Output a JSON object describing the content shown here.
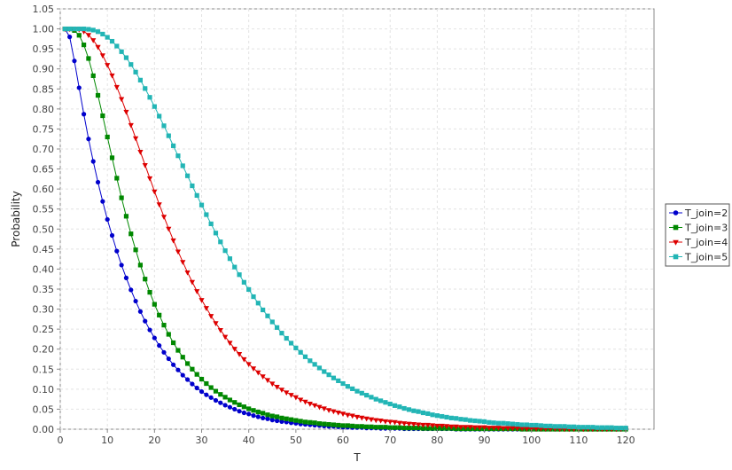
{
  "chart_data": {
    "type": "line",
    "xlabel": "T",
    "ylabel": "Probability",
    "xlim": [
      0,
      126
    ],
    "ylim": [
      0,
      1.05
    ],
    "x_ticks": [
      "0",
      "10",
      "20",
      "30",
      "40",
      "50",
      "60",
      "70",
      "80",
      "90",
      "100",
      "110",
      "120"
    ],
    "y_ticks": [
      "0.00",
      "0.05",
      "0.10",
      "0.15",
      "0.20",
      "0.25",
      "0.30",
      "0.35",
      "0.40",
      "0.45",
      "0.50",
      "0.55",
      "0.60",
      "0.65",
      "0.70",
      "0.75",
      "0.80",
      "0.85",
      "0.90",
      "0.95",
      "1.00",
      "1.05"
    ],
    "grid": true,
    "legend_position": "right",
    "x": [
      1,
      2,
      3,
      4,
      5,
      6,
      7,
      8,
      9,
      10,
      11,
      12,
      13,
      14,
      15,
      16,
      17,
      18,
      19,
      20,
      21,
      22,
      23,
      24,
      25,
      26,
      27,
      28,
      29,
      30,
      31,
      32,
      33,
      34,
      35,
      36,
      37,
      38,
      39,
      40,
      41,
      42,
      43,
      44,
      45,
      46,
      47,
      48,
      49,
      50,
      51,
      52,
      53,
      54,
      55,
      56,
      57,
      58,
      59,
      60,
      61,
      62,
      63,
      64,
      65,
      66,
      67,
      68,
      69,
      70,
      71,
      72,
      73,
      74,
      75,
      76,
      77,
      78,
      79,
      80,
      81,
      82,
      83,
      84,
      85,
      86,
      87,
      88,
      89,
      90,
      91,
      92,
      93,
      94,
      95,
      96,
      97,
      98,
      99,
      100,
      101,
      102,
      103,
      104,
      105,
      106,
      107,
      108,
      109,
      110,
      111,
      112,
      113,
      114,
      115,
      116,
      117,
      118,
      119,
      120
    ],
    "series": [
      {
        "name": "T_join=2",
        "color": "#0000cc",
        "marker": "circle",
        "values": [
          1.0,
          0.98,
          0.92,
          0.853,
          0.787,
          0.725,
          0.669,
          0.617,
          0.569,
          0.524,
          0.484,
          0.445,
          0.41,
          0.378,
          0.348,
          0.32,
          0.294,
          0.27,
          0.248,
          0.228,
          0.209,
          0.192,
          0.176,
          0.161,
          0.148,
          0.135,
          0.124,
          0.113,
          0.103,
          0.094,
          0.086,
          0.079,
          0.072,
          0.066,
          0.06,
          0.055,
          0.05,
          0.045,
          0.041,
          0.038,
          0.034,
          0.031,
          0.028,
          0.026,
          0.023,
          0.021,
          0.019,
          0.018,
          0.016,
          0.015,
          0.013,
          0.012,
          0.011,
          0.01,
          0.009,
          0.008,
          0.007,
          0.007,
          0.006,
          0.005,
          0.005,
          0.004,
          0.004,
          0.004,
          0.003,
          0.003,
          0.003,
          0.002,
          0.002,
          0.002,
          0.002,
          0.002,
          0.001,
          0.001,
          0.001,
          0.001,
          0.001,
          0.001,
          0.001,
          0.001,
          0.001,
          0.001,
          0.001,
          0.0,
          0.0,
          0.0,
          0.0,
          0.0,
          0.0,
          0.0,
          0.0,
          0.0,
          0.0,
          0.0,
          0.0,
          0.0,
          0.0,
          0.0,
          0.0,
          0.0,
          0.0,
          0.0,
          0.0,
          0.0,
          0.0,
          0.0,
          0.0,
          0.0,
          0.0,
          0.0,
          0.0,
          0.0,
          0.0,
          0.0,
          0.0,
          0.0,
          0.0,
          0.0,
          0.0,
          0.0
        ]
      },
      {
        "name": "T_join=3",
        "color": "#008800",
        "marker": "square",
        "values": [
          1.0,
          1.0,
          0.996,
          0.984,
          0.96,
          0.926,
          0.883,
          0.834,
          0.783,
          0.73,
          0.678,
          0.627,
          0.578,
          0.532,
          0.488,
          0.448,
          0.41,
          0.375,
          0.342,
          0.312,
          0.285,
          0.26,
          0.237,
          0.216,
          0.197,
          0.18,
          0.164,
          0.15,
          0.137,
          0.125,
          0.114,
          0.104,
          0.095,
          0.087,
          0.08,
          0.073,
          0.067,
          0.061,
          0.056,
          0.051,
          0.047,
          0.043,
          0.04,
          0.036,
          0.033,
          0.031,
          0.028,
          0.026,
          0.024,
          0.022,
          0.02,
          0.018,
          0.017,
          0.016,
          0.014,
          0.013,
          0.012,
          0.011,
          0.01,
          0.009,
          0.009,
          0.008,
          0.007,
          0.007,
          0.006,
          0.006,
          0.005,
          0.005,
          0.005,
          0.004,
          0.004,
          0.004,
          0.003,
          0.003,
          0.003,
          0.003,
          0.002,
          0.002,
          0.002,
          0.002,
          0.002,
          0.002,
          0.002,
          0.001,
          0.001,
          0.001,
          0.001,
          0.001,
          0.001,
          0.001,
          0.001,
          0.001,
          0.001,
          0.001,
          0.001,
          0.001,
          0.001,
          0.0,
          0.0,
          0.0,
          0.0,
          0.0,
          0.0,
          0.0,
          0.0,
          0.0,
          0.0,
          0.0,
          0.0,
          0.0,
          0.0,
          0.0,
          0.0,
          0.0,
          0.0,
          0.0,
          0.0,
          0.0,
          0.0,
          0.0
        ]
      },
      {
        "name": "T_join=4",
        "color": "#dd0000",
        "marker": "triangle-down",
        "values": [
          1.0,
          1.0,
          1.0,
          0.999,
          0.994,
          0.985,
          0.972,
          0.955,
          0.934,
          0.91,
          0.884,
          0.855,
          0.825,
          0.793,
          0.76,
          0.727,
          0.693,
          0.66,
          0.627,
          0.594,
          0.562,
          0.531,
          0.501,
          0.472,
          0.444,
          0.418,
          0.392,
          0.368,
          0.345,
          0.323,
          0.303,
          0.283,
          0.265,
          0.248,
          0.231,
          0.216,
          0.201,
          0.188,
          0.175,
          0.163,
          0.152,
          0.142,
          0.132,
          0.123,
          0.114,
          0.106,
          0.099,
          0.092,
          0.086,
          0.08,
          0.074,
          0.069,
          0.064,
          0.06,
          0.056,
          0.052,
          0.048,
          0.045,
          0.042,
          0.039,
          0.036,
          0.034,
          0.031,
          0.029,
          0.027,
          0.025,
          0.023,
          0.022,
          0.02,
          0.019,
          0.018,
          0.016,
          0.015,
          0.014,
          0.013,
          0.012,
          0.011,
          0.011,
          0.01,
          0.009,
          0.009,
          0.008,
          0.007,
          0.007,
          0.006,
          0.006,
          0.006,
          0.005,
          0.005,
          0.005,
          0.004,
          0.004,
          0.004,
          0.003,
          0.003,
          0.003,
          0.003,
          0.003,
          0.002,
          0.002,
          0.002,
          0.002,
          0.002,
          0.002,
          0.002,
          0.001,
          0.001,
          0.001,
          0.001,
          0.001,
          0.001,
          0.001,
          0.001,
          0.001,
          0.001,
          0.001,
          0.001,
          0.001,
          0.001,
          0.001
        ]
      },
      {
        "name": "T_join=5",
        "color": "#22b5b5",
        "marker": "square",
        "values": [
          1.0,
          1.0,
          1.0,
          1.0,
          1.0,
          0.999,
          0.997,
          0.993,
          0.987,
          0.979,
          0.969,
          0.957,
          0.943,
          0.928,
          0.911,
          0.892,
          0.872,
          0.851,
          0.829,
          0.806,
          0.782,
          0.758,
          0.733,
          0.708,
          0.683,
          0.658,
          0.633,
          0.608,
          0.584,
          0.56,
          0.536,
          0.513,
          0.49,
          0.468,
          0.446,
          0.426,
          0.405,
          0.386,
          0.367,
          0.349,
          0.331,
          0.315,
          0.298,
          0.283,
          0.268,
          0.254,
          0.24,
          0.227,
          0.215,
          0.203,
          0.192,
          0.181,
          0.171,
          0.162,
          0.153,
          0.144,
          0.136,
          0.128,
          0.121,
          0.114,
          0.107,
          0.101,
          0.095,
          0.09,
          0.085,
          0.08,
          0.075,
          0.071,
          0.067,
          0.063,
          0.059,
          0.056,
          0.052,
          0.049,
          0.046,
          0.044,
          0.041,
          0.039,
          0.036,
          0.034,
          0.032,
          0.03,
          0.028,
          0.027,
          0.025,
          0.024,
          0.022,
          0.021,
          0.02,
          0.019,
          0.017,
          0.016,
          0.015,
          0.015,
          0.014,
          0.013,
          0.012,
          0.011,
          0.011,
          0.01,
          0.01,
          0.009,
          0.008,
          0.008,
          0.007,
          0.007,
          0.007,
          0.006,
          0.006,
          0.005,
          0.005,
          0.005,
          0.005,
          0.004,
          0.004,
          0.004,
          0.004,
          0.003,
          0.003,
          0.003
        ]
      }
    ]
  }
}
